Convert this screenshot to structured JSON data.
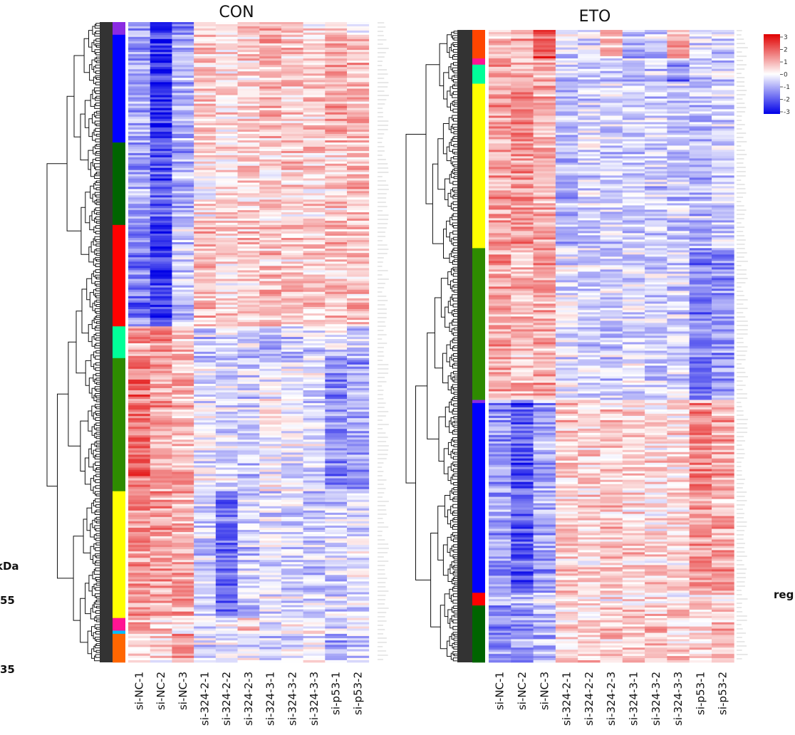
{
  "chart_data": [
    {
      "type": "heatmap",
      "title": "CON",
      "columns": [
        "si-NC-1",
        "si-NC-2",
        "si-NC-3",
        "si-324-2-1",
        "si-324-2-2",
        "si-324-2-3",
        "si-324-3-1",
        "si-324-3-2",
        "si-324-3-3",
        "si-p53-1",
        "si-p53-2"
      ],
      "clusters": [
        {
          "color": "#8a2be2",
          "fraction": 0.02,
          "profile": [
            -1.2,
            -2.2,
            -1.4,
            0.4,
            0.2,
            0.3,
            0.8,
            0.6,
            0.2,
            0.3,
            0.1
          ]
        },
        {
          "color": "#0000ff",
          "fraction": 0.17,
          "profile": [
            -1.0,
            -2.4,
            -1.0,
            0.6,
            0.4,
            0.5,
            0.8,
            0.6,
            0.6,
            1.0,
            0.9
          ]
        },
        {
          "color": "#006400",
          "fraction": 0.13,
          "profile": [
            -1.1,
            -2.0,
            -1.0,
            0.3,
            0.4,
            0.5,
            0.5,
            0.6,
            0.5,
            0.6,
            0.8
          ]
        },
        {
          "color": "#ff0000",
          "fraction": 0.16,
          "profile": [
            -1.6,
            -2.3,
            -0.6,
            0.7,
            0.5,
            0.6,
            0.7,
            0.6,
            0.5,
            0.7,
            0.8
          ]
        },
        {
          "color": "#00ff99",
          "fraction": 0.05,
          "profile": [
            1.1,
            1.4,
            0.8,
            -0.6,
            -0.4,
            -0.5,
            -0.8,
            -0.6,
            -0.4,
            -0.3,
            -0.6
          ]
        },
        {
          "color": "#2e8b00",
          "fraction": 0.21,
          "profile": [
            1.7,
            1.1,
            0.8,
            -0.2,
            -0.4,
            -0.6,
            -0.1,
            -0.3,
            -0.4,
            -1.3,
            -1.1
          ]
        },
        {
          "color": "#ffff00",
          "fraction": 0.2,
          "profile": [
            1.2,
            1.1,
            0.9,
            -0.5,
            -1.6,
            -0.6,
            -0.3,
            -0.4,
            -0.6,
            -0.5,
            -0.3
          ]
        },
        {
          "color": "#ff1493",
          "fraction": 0.02,
          "profile": [
            0.8,
            0.6,
            0.4,
            -0.3,
            -0.2,
            0.6,
            -0.2,
            0.1,
            -0.2,
            -0.3,
            -0.1
          ]
        },
        {
          "color": "#00bfff",
          "fraction": 0.005,
          "profile": [
            0.5,
            0.5,
            0.5,
            -0.4,
            -0.4,
            -0.2,
            -0.2,
            0.0,
            1.6,
            -0.5,
            -0.3
          ]
        },
        {
          "color": "#ff6600",
          "fraction": 0.045,
          "profile": [
            0.6,
            0.5,
            1.2,
            -0.4,
            -0.3,
            -0.4,
            -0.6,
            -0.3,
            -0.2,
            -1.0,
            -0.5
          ]
        }
      ]
    },
    {
      "type": "heatmap",
      "title": "ETO",
      "columns": [
        "si-NC-1",
        "si-NC-2",
        "si-NC-3",
        "si-324-2-1",
        "si-324-2-2",
        "si-324-2-3",
        "si-324-3-1",
        "si-324-3-2",
        "si-324-3-3",
        "si-p53-1",
        "si-p53-2"
      ],
      "clusters": [
        {
          "color": "#ff4500",
          "fraction": 0.045,
          "profile": [
            0.8,
            1.0,
            2.0,
            -0.3,
            -0.4,
            0.5,
            -0.8,
            -0.6,
            1.0,
            -0.4,
            -0.6
          ]
        },
        {
          "color": "#ff1493",
          "fraction": 0.01,
          "profile": [
            0.7,
            0.8,
            0.8,
            -0.4,
            -0.4,
            -0.4,
            -0.5,
            -0.5,
            -0.5,
            -0.4,
            -0.4
          ]
        },
        {
          "color": "#00ff99",
          "fraction": 0.03,
          "profile": [
            0.9,
            1.0,
            1.0,
            -0.6,
            -0.5,
            -0.6,
            -0.6,
            -0.7,
            -1.5,
            -0.6,
            -0.6
          ]
        },
        {
          "color": "#ffff00",
          "fraction": 0.26,
          "profile": [
            1.1,
            1.3,
            1.0,
            -0.9,
            -0.5,
            -0.6,
            -0.7,
            -0.6,
            -0.6,
            -0.8,
            -0.6
          ]
        },
        {
          "color": "#2e8b00",
          "fraction": 0.24,
          "profile": [
            1.1,
            0.8,
            1.0,
            -0.3,
            -0.5,
            -0.5,
            -0.4,
            -0.6,
            -0.5,
            -1.5,
            -1.2
          ]
        },
        {
          "color": "#8a2be2",
          "fraction": 0.005,
          "profile": [
            -0.5,
            -0.5,
            -0.5,
            0.3,
            0.3,
            0.3,
            0.3,
            0.3,
            0.3,
            0.5,
            0.5
          ]
        },
        {
          "color": "#0000ff",
          "fraction": 0.3,
          "profile": [
            -1.2,
            -2.0,
            -1.1,
            0.6,
            0.5,
            0.6,
            0.5,
            0.4,
            0.4,
            1.3,
            1.0
          ]
        },
        {
          "color": "#ff0000",
          "fraction": 0.02,
          "profile": [
            -0.6,
            -0.8,
            -0.6,
            0.4,
            0.3,
            0.3,
            0.5,
            0.4,
            0.3,
            0.5,
            0.5
          ]
        },
        {
          "color": "#006400",
          "fraction": 0.09,
          "profile": [
            -1.3,
            -1.1,
            -0.8,
            0.4,
            0.5,
            0.6,
            0.7,
            0.6,
            0.5,
            0.4,
            0.7
          ]
        }
      ]
    }
  ],
  "color_scale": {
    "ticks": [
      "3",
      "2",
      "1",
      "0",
      "-1",
      "-2",
      "-3"
    ],
    "high_color": "#ff0000",
    "mid_color": "#ffffff",
    "low_color": "#0000ff"
  },
  "cut_off_text": {
    "kda": "kDa",
    "n55": "55",
    "n35": "35",
    "reg": "reg"
  }
}
